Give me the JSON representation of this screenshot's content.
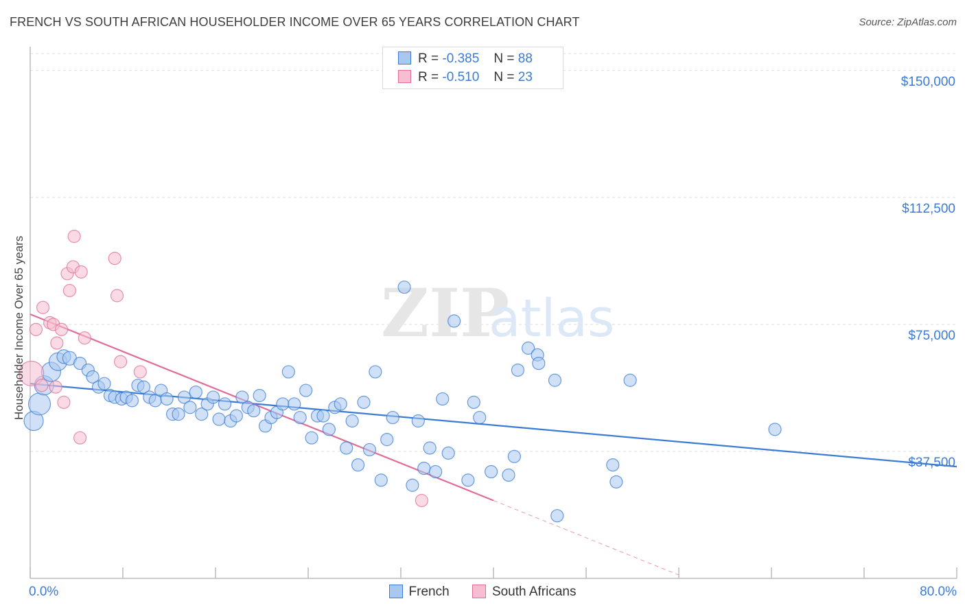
{
  "header": {
    "title": "FRENCH VS SOUTH AFRICAN HOUSEHOLDER INCOME OVER 65 YEARS CORRELATION CHART",
    "source": "Source: ZipAtlas.com"
  },
  "watermark": "ZIPatlas",
  "legend": {
    "rows": [
      {
        "r_label": "R =",
        "r_value": "-0.385",
        "n_label": "N =",
        "n_value": "88"
      },
      {
        "r_label": "R =",
        "r_value": "-0.510",
        "n_label": "N =",
        "n_value": "23"
      }
    ]
  },
  "colors": {
    "french": "#3a7bd5",
    "french_fill": "#a9c8f0",
    "south_african": "#e06c97",
    "south_african_fill": "#f6bed0",
    "tick_text": "#3a7bd5",
    "grid": "#dddddd"
  },
  "chart_data": {
    "type": "scatter",
    "title": "FRENCH VS SOUTH AFRICAN HOUSEHOLDER INCOME OVER 65 YEARS CORRELATION CHART",
    "xlabel": "",
    "ylabel": "Householder Income Over 65 years",
    "xlim": [
      0,
      80
    ],
    "ylim": [
      0,
      155000
    ],
    "x_tick_labels": [
      "0.0%",
      "80.0%"
    ],
    "y_ticks": [
      37500,
      75000,
      112500,
      150000
    ],
    "y_tick_labels": [
      "$37,500",
      "$75,000",
      "$112,500",
      "$150,000"
    ],
    "grid": "horizontal dashed",
    "legend_position": "top-center and bottom",
    "series": [
      {
        "name": "French",
        "color": "#3a7bd5",
        "trend": {
          "x": [
            0,
            80
          ],
          "y": [
            57500,
            33000
          ]
        },
        "points": [
          [
            0.3,
            46500,
            14
          ],
          [
            0.8,
            51500,
            16
          ],
          [
            1.2,
            57000,
            14
          ],
          [
            1.8,
            61000,
            14
          ],
          [
            2.4,
            64000,
            13
          ],
          [
            2.9,
            65500,
            10
          ],
          [
            3.4,
            65000,
            10
          ],
          [
            4.3,
            63500,
            9
          ],
          [
            5.0,
            61500,
            9
          ],
          [
            5.4,
            59500,
            9
          ],
          [
            5.9,
            56500,
            9
          ],
          [
            6.4,
            57500,
            9
          ],
          [
            6.9,
            54000,
            9
          ],
          [
            7.3,
            53500,
            9
          ],
          [
            7.9,
            53000,
            9
          ],
          [
            8.3,
            53500,
            9
          ],
          [
            8.8,
            52500,
            9
          ],
          [
            9.3,
            57000,
            9
          ],
          [
            9.8,
            56500,
            9
          ],
          [
            10.3,
            53500,
            9
          ],
          [
            10.8,
            52500,
            9
          ],
          [
            11.3,
            55500,
            9
          ],
          [
            11.8,
            53000,
            9
          ],
          [
            12.3,
            48500,
            9
          ],
          [
            12.8,
            48500,
            9
          ],
          [
            13.3,
            53500,
            9
          ],
          [
            13.8,
            50500,
            9
          ],
          [
            14.3,
            55000,
            9
          ],
          [
            14.8,
            48500,
            9
          ],
          [
            15.3,
            51500,
            9
          ],
          [
            15.8,
            53500,
            9
          ],
          [
            16.3,
            47000,
            9
          ],
          [
            16.8,
            51500,
            9
          ],
          [
            17.3,
            46500,
            9
          ],
          [
            17.8,
            48000,
            9
          ],
          [
            18.3,
            53500,
            9
          ],
          [
            18.8,
            50500,
            9
          ],
          [
            19.3,
            49500,
            9
          ],
          [
            19.8,
            54000,
            9
          ],
          [
            20.3,
            45000,
            9
          ],
          [
            20.8,
            47500,
            9
          ],
          [
            21.3,
            49000,
            9
          ],
          [
            21.8,
            51500,
            9
          ],
          [
            22.3,
            61000,
            9
          ],
          [
            22.8,
            51500,
            9
          ],
          [
            23.3,
            47500,
            9
          ],
          [
            23.8,
            55500,
            9
          ],
          [
            24.3,
            41500,
            9
          ],
          [
            24.8,
            48000,
            9
          ],
          [
            25.3,
            48000,
            9
          ],
          [
            25.8,
            44000,
            9
          ],
          [
            26.3,
            50500,
            9
          ],
          [
            26.8,
            51500,
            9
          ],
          [
            27.3,
            38500,
            9
          ],
          [
            27.8,
            46500,
            9
          ],
          [
            28.3,
            33500,
            9
          ],
          [
            28.8,
            52000,
            9
          ],
          [
            29.3,
            38000,
            9
          ],
          [
            29.8,
            61000,
            9
          ],
          [
            30.3,
            29000,
            9
          ],
          [
            30.8,
            41000,
            9
          ],
          [
            31.3,
            47500,
            9
          ],
          [
            32.3,
            86000,
            9
          ],
          [
            33.0,
            27500,
            9
          ],
          [
            33.5,
            46500,
            9
          ],
          [
            34.0,
            32500,
            9
          ],
          [
            34.5,
            38500,
            9
          ],
          [
            35.0,
            31500,
            9
          ],
          [
            35.6,
            53000,
            9
          ],
          [
            36.1,
            37000,
            9
          ],
          [
            36.6,
            76000,
            9
          ],
          [
            37.8,
            29000,
            9
          ],
          [
            38.3,
            52000,
            9
          ],
          [
            38.8,
            47500,
            9
          ],
          [
            39.8,
            31500,
            9
          ],
          [
            41.3,
            30500,
            9
          ],
          [
            41.8,
            36000,
            9
          ],
          [
            42.1,
            61500,
            9
          ],
          [
            43.0,
            68000,
            9
          ],
          [
            43.8,
            66000,
            9
          ],
          [
            43.9,
            63500,
            9
          ],
          [
            45.3,
            58500,
            9
          ],
          [
            45.5,
            18500,
            9
          ],
          [
            50.3,
            33500,
            9
          ],
          [
            50.6,
            28500,
            9
          ],
          [
            51.8,
            58500,
            9
          ],
          [
            64.3,
            44000,
            9
          ]
        ]
      },
      {
        "name": "South Africans",
        "color": "#e06c97",
        "trend": {
          "x": [
            0,
            40
          ],
          "y": [
            78000,
            23000
          ]
        },
        "trend_dashed": {
          "x": [
            40,
            56
          ],
          "y": [
            23000,
            1000
          ]
        },
        "points": [
          [
            0.1,
            60500,
            18
          ],
          [
            0.5,
            73500,
            9
          ],
          [
            1.0,
            57000,
            9
          ],
          [
            1.1,
            80000,
            9
          ],
          [
            1.7,
            75500,
            9
          ],
          [
            2.0,
            75000,
            9
          ],
          [
            2.2,
            56500,
            9
          ],
          [
            2.3,
            69500,
            9
          ],
          [
            2.7,
            73500,
            9
          ],
          [
            2.9,
            52000,
            9
          ],
          [
            3.2,
            90000,
            9
          ],
          [
            3.4,
            85000,
            9
          ],
          [
            3.7,
            92000,
            9
          ],
          [
            3.8,
            101000,
            9
          ],
          [
            4.3,
            41500,
            9
          ],
          [
            4.4,
            90500,
            9
          ],
          [
            4.7,
            71000,
            9
          ],
          [
            7.3,
            94500,
            9
          ],
          [
            7.5,
            83500,
            9
          ],
          [
            7.8,
            64000,
            9
          ],
          [
            9.5,
            61000,
            9
          ],
          [
            33.8,
            23000,
            9
          ]
        ]
      }
    ]
  },
  "bottom_legend": {
    "items": [
      {
        "label": "French"
      },
      {
        "label": "South Africans"
      }
    ]
  }
}
